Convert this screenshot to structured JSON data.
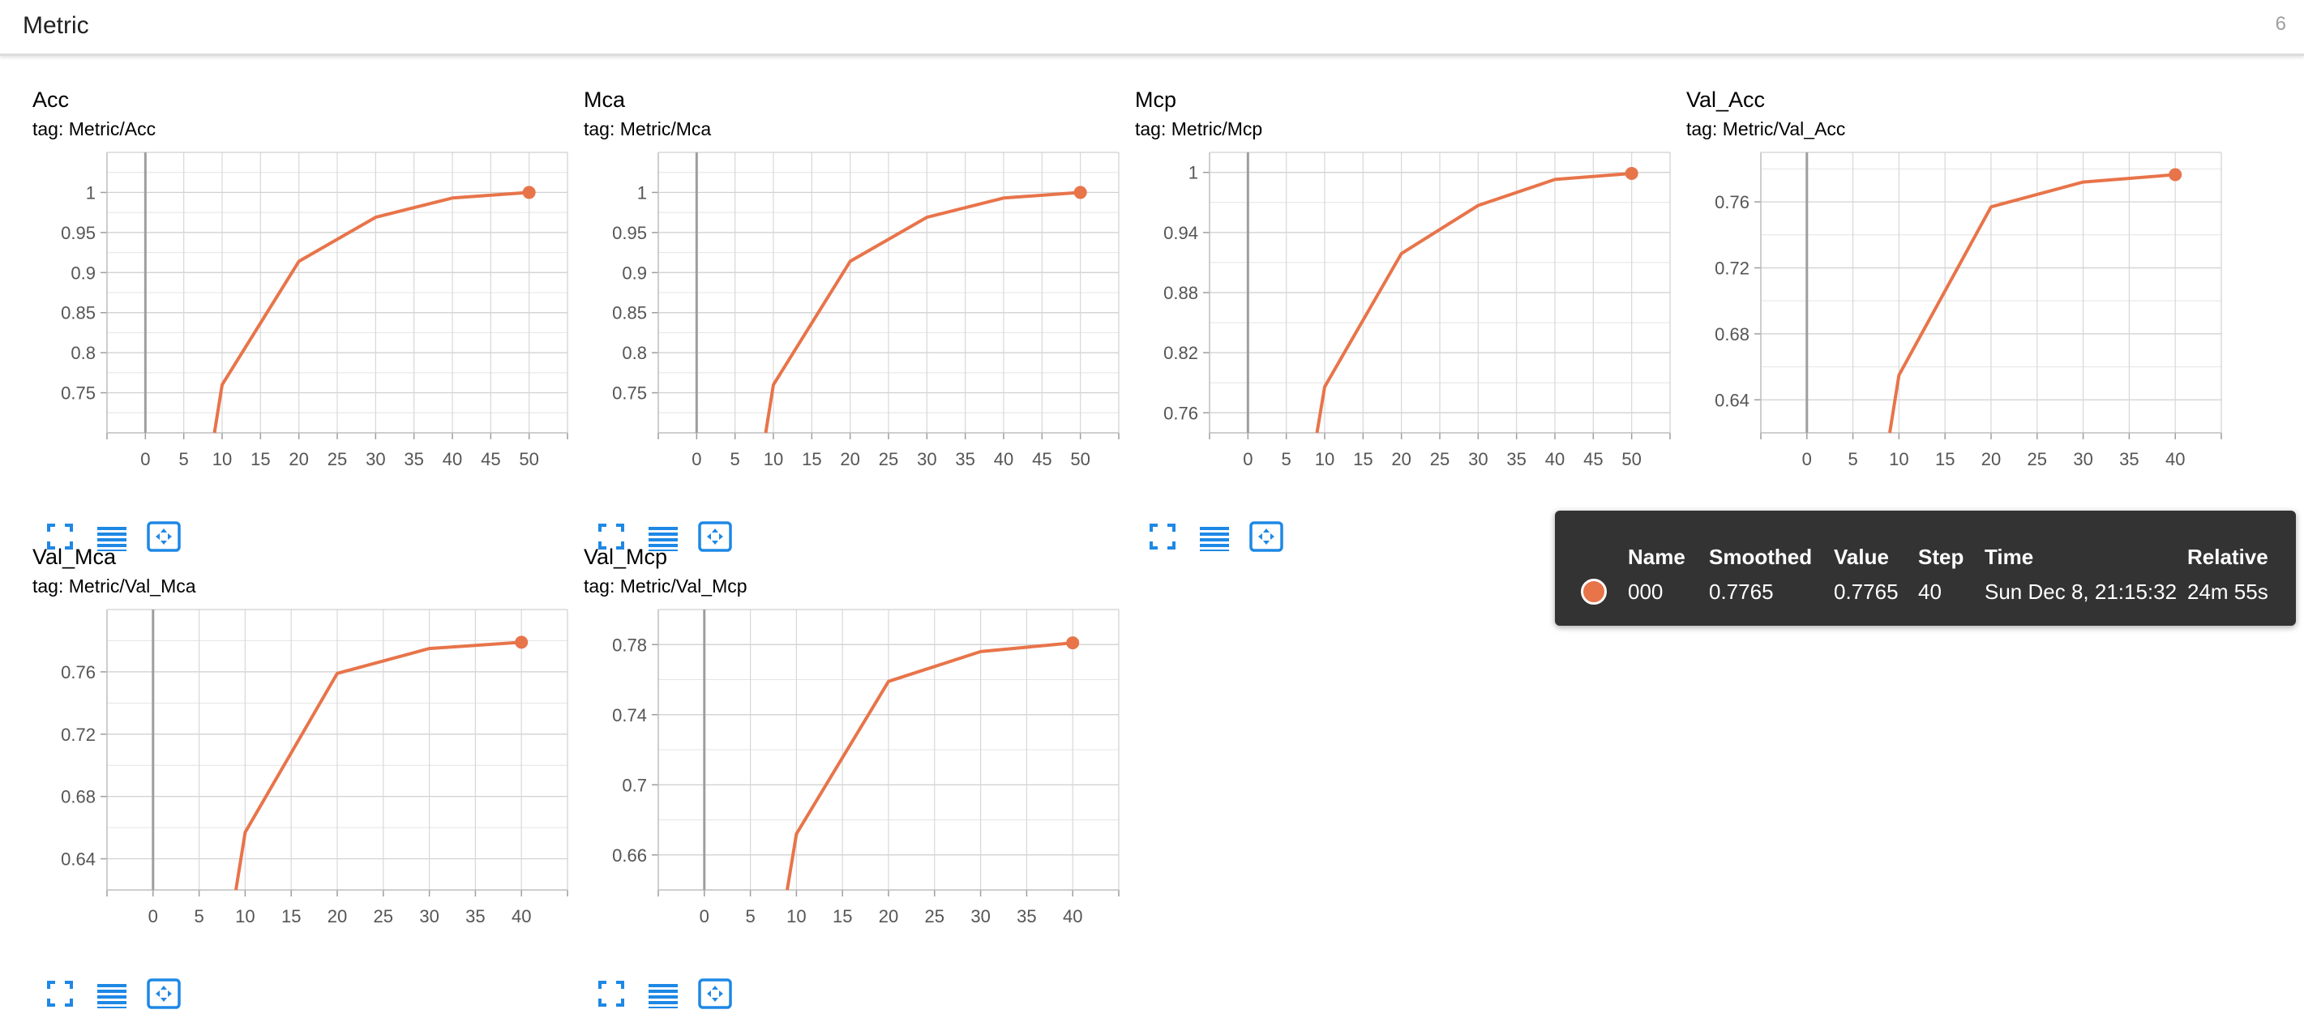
{
  "header": {
    "title": "Metric",
    "count": "6"
  },
  "colors": {
    "series": "#e8744a",
    "icon": "#1e88e5"
  },
  "icons": {
    "expand": "fullscreen-icon",
    "data": "list-icon",
    "fit": "fit-domain-icon"
  },
  "chart_data": [
    {
      "type": "line",
      "title": "Acc",
      "subtitle": "tag: Metric/Acc",
      "x": [
        9,
        10,
        20,
        30,
        40,
        50
      ],
      "series": [
        {
          "values": [
            0.7,
            0.76,
            0.914,
            0.969,
            0.993,
            1.0
          ]
        }
      ],
      "xlim": [
        -5,
        55
      ],
      "ylim": [
        0.7,
        1.05
      ],
      "xticks": [
        0,
        5,
        10,
        15,
        20,
        25,
        30,
        35,
        40,
        45,
        50
      ],
      "yticks": [
        0.75,
        0.8,
        0.85,
        0.9,
        0.95,
        1
      ],
      "ytick_labels": [
        "0.75",
        "0.8",
        "0.85",
        "0.9",
        "0.95",
        "1"
      ],
      "grid": true
    },
    {
      "type": "line",
      "title": "Mca",
      "subtitle": "tag: Metric/Mca",
      "x": [
        9,
        10,
        20,
        30,
        40,
        50
      ],
      "series": [
        {
          "values": [
            0.7,
            0.76,
            0.914,
            0.969,
            0.993,
            1.0
          ]
        }
      ],
      "xlim": [
        -5,
        55
      ],
      "ylim": [
        0.7,
        1.05
      ],
      "xticks": [
        0,
        5,
        10,
        15,
        20,
        25,
        30,
        35,
        40,
        45,
        50
      ],
      "yticks": [
        0.75,
        0.8,
        0.85,
        0.9,
        0.95,
        1
      ],
      "ytick_labels": [
        "0.75",
        "0.8",
        "0.85",
        "0.9",
        "0.95",
        "1"
      ],
      "grid": true
    },
    {
      "type": "line",
      "title": "Mcp",
      "subtitle": "tag: Metric/Mcp",
      "x": [
        9,
        10,
        20,
        30,
        40,
        50
      ],
      "series": [
        {
          "values": [
            0.74,
            0.786,
            0.919,
            0.967,
            0.993,
            0.999
          ]
        }
      ],
      "xlim": [
        -5,
        55
      ],
      "ylim": [
        0.74,
        1.02
      ],
      "xticks": [
        0,
        5,
        10,
        15,
        20,
        25,
        30,
        35,
        40,
        45,
        50
      ],
      "yticks": [
        0.76,
        0.82,
        0.88,
        0.94,
        1
      ],
      "ytick_labels": [
        "0.76",
        "0.82",
        "0.88",
        "0.94",
        "1"
      ],
      "grid": true
    },
    {
      "type": "line",
      "title": "Val_Acc",
      "subtitle": "tag: Metric/Val_Acc",
      "x": [
        9,
        10,
        20,
        30,
        40
      ],
      "series": [
        {
          "values": [
            0.62,
            0.655,
            0.757,
            0.772,
            0.7765
          ]
        }
      ],
      "xlim": [
        -5,
        45
      ],
      "ylim": [
        0.62,
        0.79
      ],
      "xticks": [
        0,
        5,
        10,
        15,
        20,
        25,
        30,
        35,
        40
      ],
      "yticks": [
        0.64,
        0.68,
        0.72,
        0.76
      ],
      "ytick_labels": [
        "0.64",
        "0.68",
        "0.72",
        "0.76"
      ],
      "grid": true
    },
    {
      "type": "line",
      "title": "Val_Mca",
      "subtitle": "tag: Metric/Val_Mca",
      "x": [
        9,
        10,
        20,
        30,
        40
      ],
      "series": [
        {
          "values": [
            0.62,
            0.657,
            0.759,
            0.775,
            0.779
          ]
        }
      ],
      "xlim": [
        -5,
        45
      ],
      "ylim": [
        0.62,
        0.8
      ],
      "xticks": [
        0,
        5,
        10,
        15,
        20,
        25,
        30,
        35,
        40
      ],
      "yticks": [
        0.64,
        0.68,
        0.72,
        0.76
      ],
      "ytick_labels": [
        "0.64",
        "0.68",
        "0.72",
        "0.76"
      ],
      "grid": true
    },
    {
      "type": "line",
      "title": "Val_Mcp",
      "subtitle": "tag: Metric/Val_Mcp",
      "x": [
        9,
        10,
        20,
        30,
        40
      ],
      "series": [
        {
          "values": [
            0.64,
            0.672,
            0.759,
            0.776,
            0.781
          ]
        }
      ],
      "xlim": [
        -5,
        45
      ],
      "ylim": [
        0.64,
        0.8
      ],
      "xticks": [
        0,
        5,
        10,
        15,
        20,
        25,
        30,
        35,
        40
      ],
      "yticks": [
        0.66,
        0.7,
        0.74,
        0.78
      ],
      "ytick_labels": [
        "0.66",
        "0.7",
        "0.74",
        "0.78"
      ],
      "grid": true
    }
  ],
  "tooltip": {
    "headers": {
      "name": "Name",
      "smoothed": "Smoothed",
      "value": "Value",
      "step": "Step",
      "time": "Time",
      "relative": "Relative"
    },
    "row": {
      "name": "000",
      "smoothed": "0.7765",
      "value": "0.7765",
      "step": "40",
      "time": "Sun Dec 8, 21:15:32",
      "relative": "24m 55s"
    }
  }
}
